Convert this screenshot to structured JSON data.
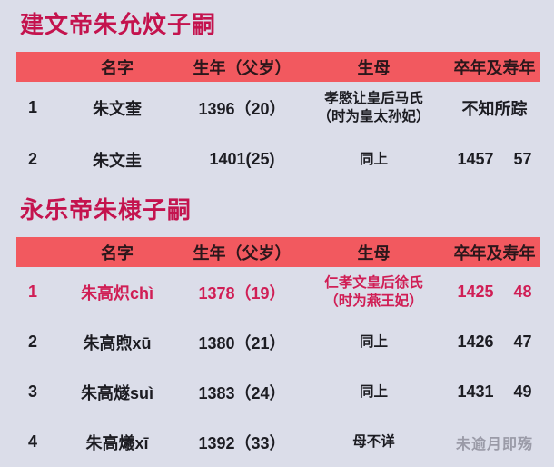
{
  "colors": {
    "bg": "#dbdde9",
    "header-bg": "#f2595f",
    "header-text": "#2b171b",
    "text": "#1c1c22",
    "accent": "#c4134e",
    "highlight": "#d01e55",
    "muted": "#8f8f9c"
  },
  "sections": [
    {
      "title": "建文帝朱允炆子嗣",
      "columns": [
        "名字",
        "生年（父岁）",
        "生母",
        "卒年及寿年"
      ],
      "rows": [
        {
          "index": "1",
          "name": "朱文奎",
          "birth": "1396（20）",
          "mother_line1": "孝愍让皇后马氏",
          "mother_line2": "（时为皇太孙妃）",
          "death": "不知所踪",
          "highlight": false
        },
        {
          "index": "2",
          "name": "朱文圭",
          "birth": "1401(25)",
          "mother_line1": "同上",
          "death_year": "1457",
          "age": "57",
          "highlight": false
        }
      ]
    },
    {
      "title": "永乐帝朱棣子嗣",
      "columns": [
        "名字",
        "生年（父岁）",
        "生母",
        "卒年及寿年"
      ],
      "rows": [
        {
          "index": "1",
          "name": "朱高炽chì",
          "birth": "1378（19）",
          "mother_line1": "仁孝文皇后徐氏",
          "mother_line2": "（时为燕王妃）",
          "death_year": "1425",
          "age": "48",
          "highlight": true
        },
        {
          "index": "2",
          "name": "朱高煦xū",
          "birth": "1380（21）",
          "mother_line1": "同上",
          "death_year": "1426",
          "age": "47",
          "highlight": false
        },
        {
          "index": "3",
          "name": "朱高燧suì",
          "birth": "1383（24）",
          "mother_line1": "同上",
          "death_year": "1431",
          "age": "49",
          "highlight": false
        },
        {
          "index": "4",
          "name": "朱高爔xī",
          "birth": "1392（33）",
          "mother_line1": "母不详",
          "death": "未逾月即殇",
          "death_muted": true,
          "highlight": false
        }
      ]
    }
  ]
}
